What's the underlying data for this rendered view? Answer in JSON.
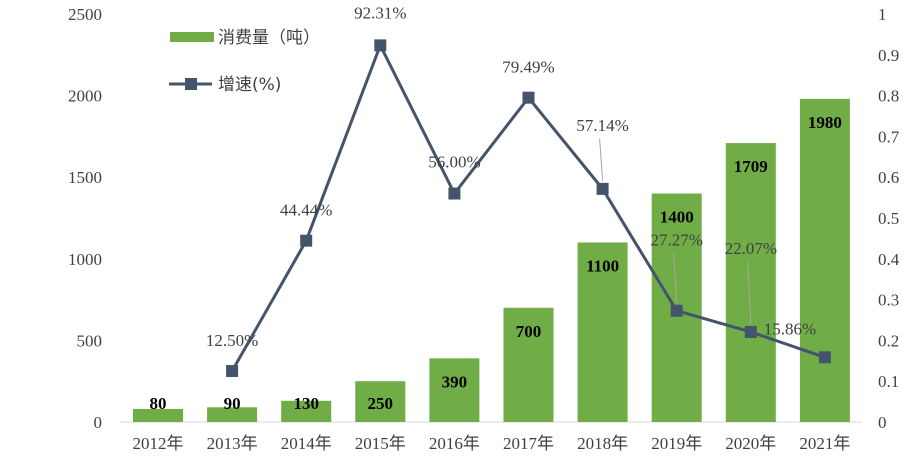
{
  "chart_data": {
    "type": "bar+line",
    "categories": [
      "2012年",
      "2013年",
      "2014年",
      "2015年",
      "2016年",
      "2017年",
      "2018年",
      "2019年",
      "2020年",
      "2021年"
    ],
    "series": [
      {
        "name": "消费量（吨）",
        "type": "bar",
        "axis": "left",
        "values": [
          80,
          90,
          130,
          250,
          390,
          700,
          1100,
          1400,
          1709,
          1980
        ],
        "labels": [
          "80",
          "90",
          "130",
          "250",
          "390",
          "700",
          "1100",
          "1400",
          "1709",
          "1980"
        ]
      },
      {
        "name": "增速(%)",
        "type": "line",
        "axis": "right",
        "values": [
          null,
          0.125,
          0.4444,
          0.9231,
          0.56,
          0.7949,
          0.5714,
          0.2727,
          0.2207,
          0.1586
        ],
        "labels": [
          null,
          "12.50%",
          "44.44%",
          "92.31%",
          "56.00%",
          "79.49%",
          "57.14%",
          "27.27%",
          "22.07%",
          "15.86%"
        ]
      }
    ],
    "y_left": {
      "range": [
        0,
        2500
      ],
      "ticks": [
        "0",
        "500",
        "1000",
        "1500",
        "2000",
        "2500"
      ]
    },
    "y_right": {
      "range": [
        0,
        1
      ],
      "ticks": [
        "0",
        "0.1",
        "0.2",
        "0.3",
        "0.4",
        "0.5",
        "0.6",
        "0.7",
        "0.8",
        "0.9",
        "1"
      ]
    },
    "legend": {
      "placement": "top-left",
      "items": [
        "消费量（吨）",
        "增速(%)"
      ]
    },
    "colors": {
      "bar": "#70AD47",
      "line": "#44546A"
    },
    "grid": false
  }
}
